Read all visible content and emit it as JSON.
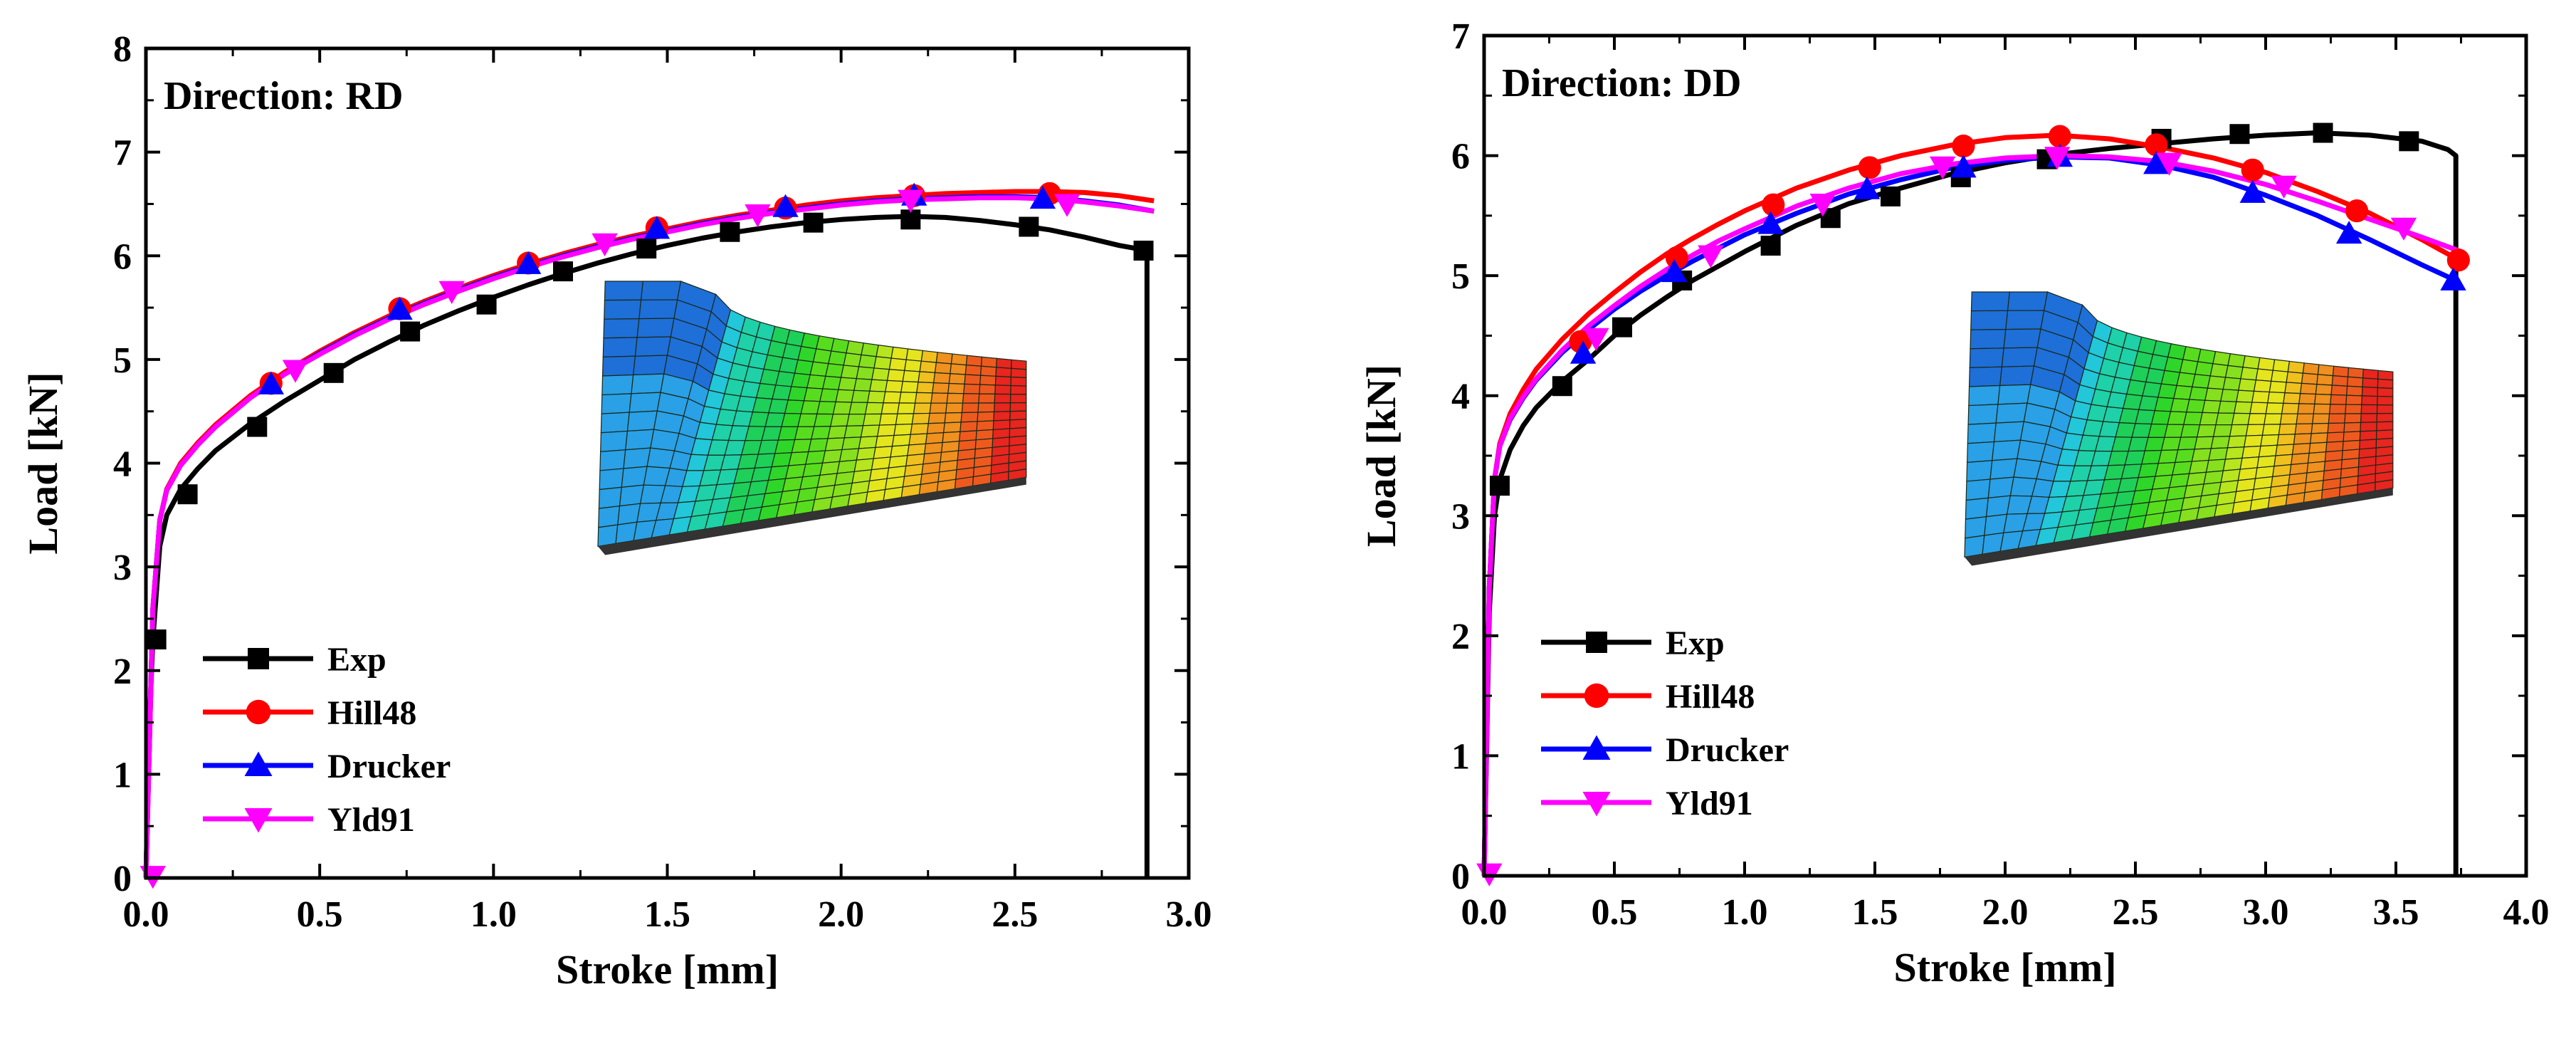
{
  "chart_data": [
    {
      "type": "line",
      "direction_label": "Direction: RD",
      "xlabel": "Stroke [mm]",
      "ylabel": "Load [kN]",
      "xlim": [
        0,
        3.0
      ],
      "ylim": [
        0,
        8
      ],
      "xticks": [
        0.0,
        0.5,
        1.0,
        1.5,
        2.0,
        2.5,
        3.0
      ],
      "xtick_labels": [
        "0.0",
        "0.5",
        "1.0",
        "1.5",
        "2.0",
        "2.5",
        "3.0"
      ],
      "yticks": [
        0,
        1,
        2,
        3,
        4,
        5,
        6,
        7,
        8
      ],
      "ytick_labels": [
        "0",
        "1",
        "2",
        "3",
        "4",
        "5",
        "6",
        "7",
        "8"
      ],
      "legend": [
        "Exp",
        "Hill48",
        "Drucker",
        "Yld91"
      ],
      "legend_position": "bottom-left",
      "inset": "deformed specimen FE mesh with stress contour",
      "series": [
        {
          "name": "Exp",
          "color": "#000000",
          "marker": "square",
          "x": [
            0.0,
            0.01,
            0.02,
            0.04,
            0.06,
            0.1,
            0.15,
            0.2,
            0.3,
            0.4,
            0.5,
            0.6,
            0.7,
            0.8,
            0.9,
            1.0,
            1.1,
            1.2,
            1.3,
            1.4,
            1.5,
            1.6,
            1.7,
            1.8,
            1.9,
            2.0,
            2.1,
            2.2,
            2.3,
            2.4,
            2.5,
            2.6,
            2.7,
            2.8,
            2.85,
            2.88,
            2.88
          ],
          "y": [
            0.0,
            1.5,
            2.3,
            3.2,
            3.5,
            3.75,
            3.95,
            4.12,
            4.38,
            4.6,
            4.8,
            5.0,
            5.17,
            5.33,
            5.47,
            5.6,
            5.72,
            5.83,
            5.93,
            6.02,
            6.1,
            6.17,
            6.23,
            6.28,
            6.32,
            6.35,
            6.37,
            6.38,
            6.37,
            6.34,
            6.3,
            6.25,
            6.18,
            6.1,
            6.07,
            6.05,
            0.0
          ],
          "markers_x": [
            0.03,
            0.12,
            0.32,
            0.54,
            0.76,
            0.98,
            1.2,
            1.44,
            1.68,
            1.92,
            2.2,
            2.54,
            2.87
          ],
          "markers_y": [
            2.3,
            3.7,
            4.35,
            4.87,
            5.27,
            5.53,
            5.85,
            6.07,
            6.23,
            6.32,
            6.35,
            6.28,
            6.05
          ]
        },
        {
          "name": "Hill48",
          "color": "#ff0000",
          "marker": "circle",
          "x": [
            0.0,
            0.02,
            0.04,
            0.06,
            0.1,
            0.15,
            0.2,
            0.3,
            0.4,
            0.5,
            0.6,
            0.7,
            0.8,
            0.9,
            1.0,
            1.1,
            1.2,
            1.3,
            1.4,
            1.5,
            1.6,
            1.7,
            1.8,
            1.9,
            2.0,
            2.1,
            2.2,
            2.3,
            2.4,
            2.5,
            2.6,
            2.7,
            2.8,
            2.9
          ],
          "y": [
            0.0,
            2.6,
            3.45,
            3.75,
            4.0,
            4.2,
            4.37,
            4.65,
            4.88,
            5.08,
            5.26,
            5.42,
            5.56,
            5.69,
            5.81,
            5.92,
            6.02,
            6.11,
            6.19,
            6.26,
            6.33,
            6.39,
            6.44,
            6.49,
            6.53,
            6.56,
            6.58,
            6.6,
            6.61,
            6.62,
            6.62,
            6.61,
            6.58,
            6.53
          ],
          "markers_x": [
            0.36,
            0.73,
            1.1,
            1.47,
            1.84,
            2.21,
            2.6
          ],
          "markers_y": [
            4.77,
            5.49,
            5.93,
            6.27,
            6.46,
            6.58,
            6.6
          ]
        },
        {
          "name": "Drucker",
          "color": "#0000ff",
          "marker": "triangle-up",
          "x": [
            0.0,
            0.02,
            0.04,
            0.06,
            0.1,
            0.15,
            0.2,
            0.3,
            0.4,
            0.5,
            0.6,
            0.7,
            0.8,
            0.9,
            1.0,
            1.1,
            1.2,
            1.3,
            1.4,
            1.5,
            1.6,
            1.7,
            1.8,
            1.9,
            2.0,
            2.1,
            2.2,
            2.3,
            2.4,
            2.5,
            2.6,
            2.7,
            2.8,
            2.9
          ],
          "y": [
            0.0,
            2.6,
            3.45,
            3.74,
            3.98,
            4.18,
            4.35,
            4.63,
            4.86,
            5.06,
            5.24,
            5.4,
            5.54,
            5.67,
            5.79,
            5.9,
            6.0,
            6.09,
            6.17,
            6.24,
            6.31,
            6.37,
            6.42,
            6.46,
            6.5,
            6.53,
            6.55,
            6.56,
            6.57,
            6.57,
            6.56,
            6.53,
            6.49,
            6.43
          ],
          "markers_x": [
            0.36,
            0.73,
            1.1,
            1.47,
            1.84,
            2.21,
            2.58
          ],
          "markers_y": [
            4.76,
            5.48,
            5.92,
            6.26,
            6.47,
            6.58,
            6.55
          ]
        },
        {
          "name": "Yld91",
          "color": "#ff00ff",
          "marker": "triangle-down",
          "x": [
            0.0,
            0.02,
            0.04,
            0.06,
            0.1,
            0.15,
            0.2,
            0.3,
            0.4,
            0.5,
            0.6,
            0.7,
            0.8,
            0.9,
            1.0,
            1.1,
            1.2,
            1.3,
            1.4,
            1.5,
            1.6,
            1.7,
            1.8,
            1.9,
            2.0,
            2.1,
            2.2,
            2.3,
            2.4,
            2.5,
            2.6,
            2.7,
            2.8,
            2.9
          ],
          "y": [
            0.0,
            2.6,
            3.45,
            3.74,
            3.98,
            4.18,
            4.35,
            4.63,
            4.86,
            5.05,
            5.23,
            5.39,
            5.53,
            5.66,
            5.78,
            5.89,
            5.99,
            6.08,
            6.16,
            6.23,
            6.3,
            6.36,
            6.41,
            6.45,
            6.49,
            6.52,
            6.54,
            6.55,
            6.56,
            6.56,
            6.55,
            6.52,
            6.48,
            6.43
          ],
          "markers_x": [
            0.02,
            0.43,
            0.88,
            1.32,
            1.76,
            2.2,
            2.65
          ],
          "markers_y": [
            0.02,
            4.9,
            5.66,
            6.12,
            6.4,
            6.54,
            6.5
          ]
        }
      ]
    },
    {
      "type": "line",
      "direction_label": "Direction: DD",
      "xlabel": "Stroke [mm]",
      "ylabel": "Load [kN]",
      "xlim": [
        0,
        4.0
      ],
      "ylim": [
        0,
        7
      ],
      "xticks": [
        0.0,
        0.5,
        1.0,
        1.5,
        2.0,
        2.5,
        3.0,
        3.5,
        4.0
      ],
      "xtick_labels": [
        "0.0",
        "0.5",
        "1.0",
        "1.5",
        "2.0",
        "2.5",
        "3.0",
        "3.5",
        "4.0"
      ],
      "yticks": [
        0,
        1,
        2,
        3,
        4,
        5,
        6,
        7
      ],
      "ytick_labels": [
        "0",
        "1",
        "2",
        "3",
        "4",
        "5",
        "6",
        "7"
      ],
      "legend": [
        "Exp",
        "Hill48",
        "Drucker",
        "Yld91"
      ],
      "legend_position": "bottom-left",
      "inset": "deformed specimen FE mesh with stress contour",
      "series": [
        {
          "name": "Exp",
          "color": "#000000",
          "marker": "square",
          "x": [
            0.0,
            0.02,
            0.04,
            0.06,
            0.1,
            0.15,
            0.2,
            0.3,
            0.4,
            0.5,
            0.6,
            0.7,
            0.8,
            0.9,
            1.0,
            1.2,
            1.4,
            1.6,
            1.8,
            2.0,
            2.2,
            2.4,
            2.6,
            2.8,
            3.0,
            3.2,
            3.4,
            3.6,
            3.7,
            3.73,
            3.73
          ],
          "y": [
            0.0,
            2.2,
            3.0,
            3.3,
            3.55,
            3.75,
            3.9,
            4.12,
            4.3,
            4.5,
            4.67,
            4.82,
            4.96,
            5.08,
            5.2,
            5.42,
            5.6,
            5.73,
            5.85,
            5.94,
            6.01,
            6.06,
            6.1,
            6.14,
            6.17,
            6.19,
            6.17,
            6.12,
            6.05,
            6.0,
            0.0
          ],
          "markers_x": [
            0.06,
            0.3,
            0.53,
            0.76,
            1.1,
            1.33,
            1.56,
            1.83,
            2.16,
            2.6,
            2.9,
            3.22,
            3.55
          ],
          "markers_y": [
            3.25,
            4.08,
            4.57,
            4.96,
            5.25,
            5.48,
            5.66,
            5.82,
            5.97,
            6.14,
            6.18,
            6.19,
            6.12
          ]
        },
        {
          "name": "Hill48",
          "color": "#ff0000",
          "marker": "circle",
          "x": [
            0.0,
            0.02,
            0.04,
            0.06,
            0.1,
            0.15,
            0.2,
            0.3,
            0.4,
            0.5,
            0.6,
            0.7,
            0.8,
            0.9,
            1.0,
            1.2,
            1.4,
            1.6,
            1.8,
            2.0,
            2.2,
            2.4,
            2.6,
            2.8,
            3.0,
            3.2,
            3.4,
            3.6,
            3.75
          ],
          "y": [
            0.0,
            2.4,
            3.3,
            3.6,
            3.85,
            4.05,
            4.22,
            4.47,
            4.68,
            4.86,
            5.03,
            5.18,
            5.31,
            5.43,
            5.54,
            5.73,
            5.88,
            6.0,
            6.09,
            6.15,
            6.17,
            6.14,
            6.07,
            5.98,
            5.86,
            5.7,
            5.52,
            5.3,
            5.12
          ],
          "markers_x": [
            0.37,
            0.74,
            1.11,
            1.48,
            1.84,
            2.21,
            2.58,
            2.95,
            3.35,
            3.74
          ],
          "markers_y": [
            4.45,
            5.15,
            5.59,
            5.9,
            6.08,
            6.16,
            6.09,
            5.88,
            5.54,
            5.13
          ]
        },
        {
          "name": "Drucker",
          "color": "#0000ff",
          "marker": "triangle-up",
          "x": [
            0.0,
            0.02,
            0.04,
            0.06,
            0.1,
            0.15,
            0.2,
            0.3,
            0.4,
            0.5,
            0.6,
            0.7,
            0.8,
            0.9,
            1.0,
            1.2,
            1.4,
            1.6,
            1.8,
            2.0,
            2.2,
            2.4,
            2.6,
            2.8,
            3.0,
            3.2,
            3.4,
            3.6,
            3.74
          ],
          "y": [
            0.0,
            2.4,
            3.3,
            3.58,
            3.8,
            3.98,
            4.13,
            4.36,
            4.55,
            4.72,
            4.87,
            5.0,
            5.12,
            5.23,
            5.34,
            5.52,
            5.68,
            5.8,
            5.9,
            5.96,
            5.99,
            5.98,
            5.92,
            5.82,
            5.67,
            5.5,
            5.3,
            5.09,
            4.95
          ],
          "markers_x": [
            0.38,
            0.73,
            1.1,
            1.47,
            1.84,
            2.21,
            2.58,
            2.95,
            3.32,
            3.72
          ],
          "markers_y": [
            4.35,
            5.03,
            5.43,
            5.72,
            5.9,
            5.99,
            5.93,
            5.69,
            5.35,
            4.96
          ]
        },
        {
          "name": "Yld91",
          "color": "#ff00ff",
          "marker": "triangle-down",
          "x": [
            0.0,
            0.02,
            0.04,
            0.06,
            0.1,
            0.15,
            0.2,
            0.3,
            0.4,
            0.5,
            0.6,
            0.7,
            0.8,
            0.9,
            1.0,
            1.2,
            1.4,
            1.6,
            1.8,
            2.0,
            2.2,
            2.4,
            2.6,
            2.8,
            3.0,
            3.2,
            3.4,
            3.6,
            3.75
          ],
          "y": [
            0.0,
            2.4,
            3.3,
            3.58,
            3.81,
            3.99,
            4.14,
            4.38,
            4.58,
            4.75,
            4.91,
            5.05,
            5.17,
            5.29,
            5.39,
            5.58,
            5.73,
            5.85,
            5.93,
            5.98,
            6.0,
            5.99,
            5.95,
            5.87,
            5.76,
            5.62,
            5.47,
            5.32,
            5.2
          ],
          "markers_x": [
            0.02,
            0.43,
            0.87,
            1.3,
            1.76,
            2.2,
            2.63,
            3.07,
            3.53
          ],
          "markers_y": [
            0.02,
            4.48,
            5.17,
            5.6,
            5.91,
            5.99,
            5.94,
            5.75,
            5.4
          ]
        }
      ]
    }
  ]
}
